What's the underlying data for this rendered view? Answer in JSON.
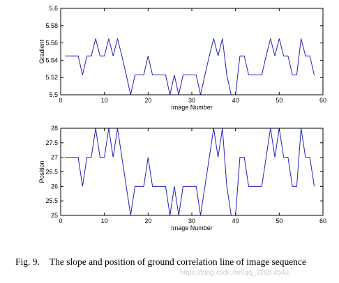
{
  "chart_data": [
    {
      "type": "line",
      "xlabel": "Image Number",
      "ylabel": "Gradient",
      "xlim": [
        0,
        60
      ],
      "ylim": [
        5.5,
        5.6
      ],
      "xticks": [
        0,
        10,
        20,
        30,
        40,
        50,
        60
      ],
      "yticks": [
        5.5,
        5.52,
        5.54,
        5.56,
        5.58,
        5.6
      ],
      "ytick_labels": [
        "5.5",
        "5.52",
        "5.54",
        "5.56",
        "5.58",
        "5.6"
      ],
      "series": [
        {
          "color": "#1f1fbf",
          "x": [
            1,
            2,
            3,
            4,
            5,
            6,
            7,
            8,
            9,
            10,
            11,
            12,
            13,
            14,
            15,
            16,
            17,
            18,
            19,
            20,
            21,
            22,
            23,
            24,
            25,
            26,
            27,
            28,
            29,
            30,
            31,
            32,
            33,
            34,
            35,
            36,
            37,
            38,
            39,
            40,
            41,
            42,
            43,
            44,
            45,
            46,
            47,
            48,
            49,
            50,
            51,
            52,
            53,
            54,
            55,
            56,
            57,
            58
          ],
          "values": [
            5.545,
            5.545,
            5.545,
            5.545,
            5.523,
            5.545,
            5.545,
            5.565,
            5.545,
            5.545,
            5.565,
            5.545,
            5.565,
            5.545,
            5.523,
            5.5,
            5.523,
            5.523,
            5.523,
            5.545,
            5.523,
            5.523,
            5.523,
            5.523,
            5.5,
            5.523,
            5.5,
            5.523,
            5.523,
            5.523,
            5.523,
            5.5,
            5.523,
            5.545,
            5.565,
            5.545,
            5.565,
            5.523,
            5.5,
            5.5,
            5.545,
            5.545,
            5.523,
            5.523,
            5.523,
            5.523,
            5.545,
            5.565,
            5.545,
            5.565,
            5.545,
            5.545,
            5.523,
            5.523,
            5.565,
            5.545,
            5.545,
            5.523
          ]
        }
      ]
    },
    {
      "type": "line",
      "xlabel": "Image Number",
      "ylabel": "Position",
      "xlim": [
        0,
        60
      ],
      "ylim": [
        25,
        28
      ],
      "xticks": [
        0,
        10,
        20,
        30,
        40,
        50,
        60
      ],
      "yticks": [
        25,
        25.5,
        26,
        26.5,
        27,
        27.5,
        28
      ],
      "ytick_labels": [
        "25",
        "25.5",
        "26",
        "26.5",
        "27",
        "27.5",
        "28"
      ],
      "series": [
        {
          "color": "#1f1fbf",
          "x": [
            1,
            2,
            3,
            4,
            5,
            6,
            7,
            8,
            9,
            10,
            11,
            12,
            13,
            14,
            15,
            16,
            17,
            18,
            19,
            20,
            21,
            22,
            23,
            24,
            25,
            26,
            27,
            28,
            29,
            30,
            31,
            32,
            33,
            34,
            35,
            36,
            37,
            38,
            39,
            40,
            41,
            42,
            43,
            44,
            45,
            46,
            47,
            48,
            49,
            50,
            51,
            52,
            53,
            54,
            55,
            56,
            57,
            58
          ],
          "values": [
            27,
            27,
            27,
            27,
            26,
            27,
            27,
            28,
            27,
            27,
            28,
            27,
            28,
            27,
            26,
            25,
            26,
            26,
            26,
            27,
            26,
            26,
            26,
            26,
            25,
            26,
            25,
            26,
            26,
            26,
            26,
            25,
            26,
            27,
            28,
            27,
            28,
            26,
            25,
            25,
            27,
            27,
            26,
            26,
            26,
            26,
            27,
            28,
            27,
            28,
            27,
            27,
            26,
            26,
            28,
            27,
            27,
            26
          ]
        }
      ]
    }
  ],
  "caption": {
    "label": "Fig. 9.",
    "text": "The slope and position of ground correlation line of image sequence"
  },
  "watermark": "https://blog.csdn.net/qq_3265 4543"
}
